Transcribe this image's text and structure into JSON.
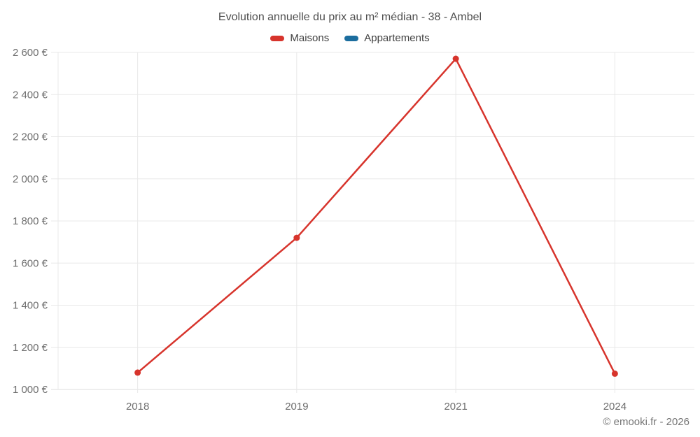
{
  "chart_data": {
    "type": "line",
    "title": "Evolution annuelle du prix au m² médian - 38 - Ambel",
    "categories": [
      "2018",
      "2019",
      "2021",
      "2024"
    ],
    "series": [
      {
        "name": "Maisons",
        "color": "#d7342c",
        "values": [
          1080,
          1720,
          2570,
          1075
        ]
      },
      {
        "name": "Appartements",
        "color": "#1b6d9e",
        "values": []
      }
    ],
    "ylabel": "",
    "xlabel": "",
    "ylim": [
      1000,
      2600
    ],
    "ytick_step": 200,
    "ytick_labels": [
      "1 000 €",
      "1 200 €",
      "1 400 €",
      "1 600 €",
      "1 800 €",
      "2 000 €",
      "2 200 €",
      "2 400 €",
      "2 600 €"
    ],
    "grid": true,
    "legend_position": "top",
    "currency_suffix": " €"
  },
  "footer": {
    "text": "© emooki.fr - 2026"
  },
  "colors": {
    "background": "#ffffff",
    "grid": "#e8e8e8",
    "axis_line": "#dcdcdc",
    "tick_text": "#6e6e6e",
    "title_text": "#4e4e4e",
    "legend_text": "#414141"
  }
}
